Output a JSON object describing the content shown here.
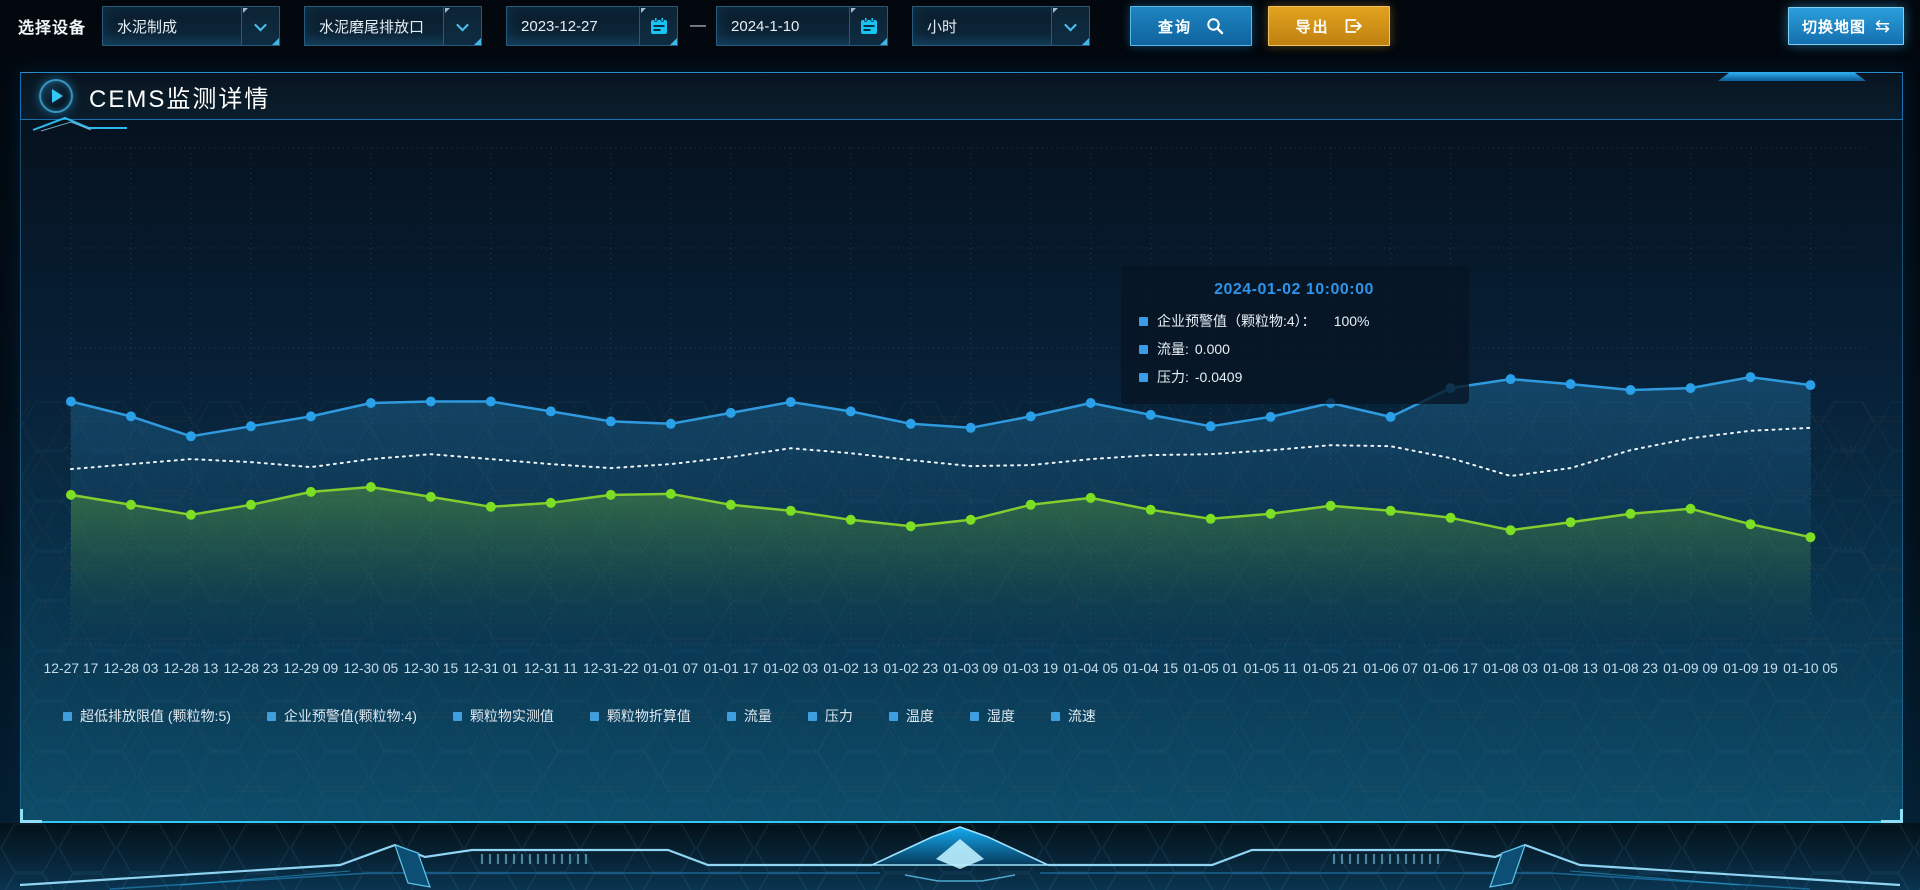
{
  "toolbar": {
    "device_label": "选择设备",
    "device_select": {
      "value": "水泥制成"
    },
    "outlet_select": {
      "value": "水泥磨尾排放口"
    },
    "date_range": {
      "start": "2023-12-27",
      "separator": "—",
      "end": "2024-1-10"
    },
    "interval_select": {
      "value": "小时"
    },
    "query_button": "查询",
    "export_button": "导出",
    "switch_map_button": "切换地图",
    "switch_map_glyph": "⇆"
  },
  "panel": {
    "title": "CEMS监测详情"
  },
  "tooltip": {
    "timestamp": "2024-01-02 10:00:00",
    "rows": [
      {
        "label": "企业预警值（颗粒物:4）：",
        "value": "100%"
      },
      {
        "label": "流量:",
        "value": "0.000"
      },
      {
        "label": "压力:",
        "value": "-0.0409"
      }
    ]
  },
  "legend": {
    "items": [
      "超低排放限值 (颗粒物:5)",
      "企业预警值(颗粒物:4)",
      "颗粒物实测值",
      "颗粒物折算值",
      "流量",
      "压力",
      "温度",
      "湿度",
      "流速"
    ]
  },
  "colors": {
    "accent_cyan": "#35c7f5",
    "query_button": "#1578b4",
    "export_button": "#d6951a",
    "line_blue": "#2f9ade",
    "dot_blue": "#29a0e8",
    "line_green": "#85cc2e",
    "dot_green": "#7ddf23",
    "line_dotted_white": "#eef5fa",
    "tooltip_title": "#2e93ea",
    "legend_marker": "#3f9fe0",
    "axis_label": "#c6dcea"
  },
  "chart_data": {
    "type": "line",
    "title": "",
    "xlabel": "",
    "ylabel": "",
    "grid": true,
    "legend_position": "bottom",
    "y_axis": {
      "visible": false,
      "note": "no y-axis tick labels shown; series values estimated as percent of plot height from bottom (0-100)"
    },
    "x": [
      "12-27 17",
      "12-28 03",
      "12-28 13",
      "12-28 23",
      "12-29 09",
      "12-30 05",
      "12-30 15",
      "12-31 01",
      "12-31 11",
      "12-31-22",
      "01-01 07",
      "01-01 17",
      "01-02 03",
      "01-02 13",
      "01-02 23",
      "01-03 09",
      "01-03 19",
      "01-04 05",
      "01-04 15",
      "01-05 01",
      "01-05 11",
      "01-05 21",
      "01-06 07",
      "01-06 17",
      "01-08 03",
      "01-08 13",
      "01-08 23",
      "01-09 09",
      "01-09 19",
      "01-10 05"
    ],
    "series": [
      {
        "name": "流量",
        "color": "#2f9ade",
        "dot_color": "#29a0e8",
        "style": "solid",
        "points": true,
        "area": "blue",
        "values": [
          49,
          46,
          42,
          44,
          46,
          48.7,
          49,
          49,
          47,
          45,
          44.5,
          46.7,
          48.9,
          47,
          44.5,
          43.7,
          46,
          48.7,
          46.3,
          44,
          45.9,
          48.7,
          45.9,
          51.7,
          53.5,
          52.5,
          51.3,
          51.7,
          53.9,
          52.3
        ]
      },
      {
        "name": "企业预警值(颗粒物:4)",
        "color": "#eef5fa",
        "dot_color": "#eef5fa",
        "style": "dotted",
        "points": false,
        "area": "none",
        "values": [
          35.4,
          36.4,
          37.4,
          36.8,
          35.8,
          37.4,
          38.4,
          37.4,
          36.4,
          35.6,
          36.4,
          37.8,
          39.6,
          38.6,
          37.2,
          36,
          36.2,
          37.4,
          38.2,
          38.4,
          39.2,
          40.2,
          40,
          37.6,
          34,
          35.6,
          39.2,
          41.6,
          43.1,
          43.7
        ]
      },
      {
        "name": "压力",
        "color": "#85cc2e",
        "dot_color": "#7ddf23",
        "style": "solid",
        "points": true,
        "area": "green",
        "values": [
          30.2,
          28.2,
          26.2,
          28.2,
          30.8,
          31.8,
          29.8,
          27.8,
          28.6,
          30.2,
          30.4,
          28.2,
          27,
          25.2,
          23.9,
          25.2,
          28.2,
          29.6,
          27.2,
          25.4,
          26.4,
          28,
          27,
          25.6,
          23.1,
          24.7,
          26.4,
          27.4,
          24.3,
          21.7
        ]
      }
    ]
  }
}
